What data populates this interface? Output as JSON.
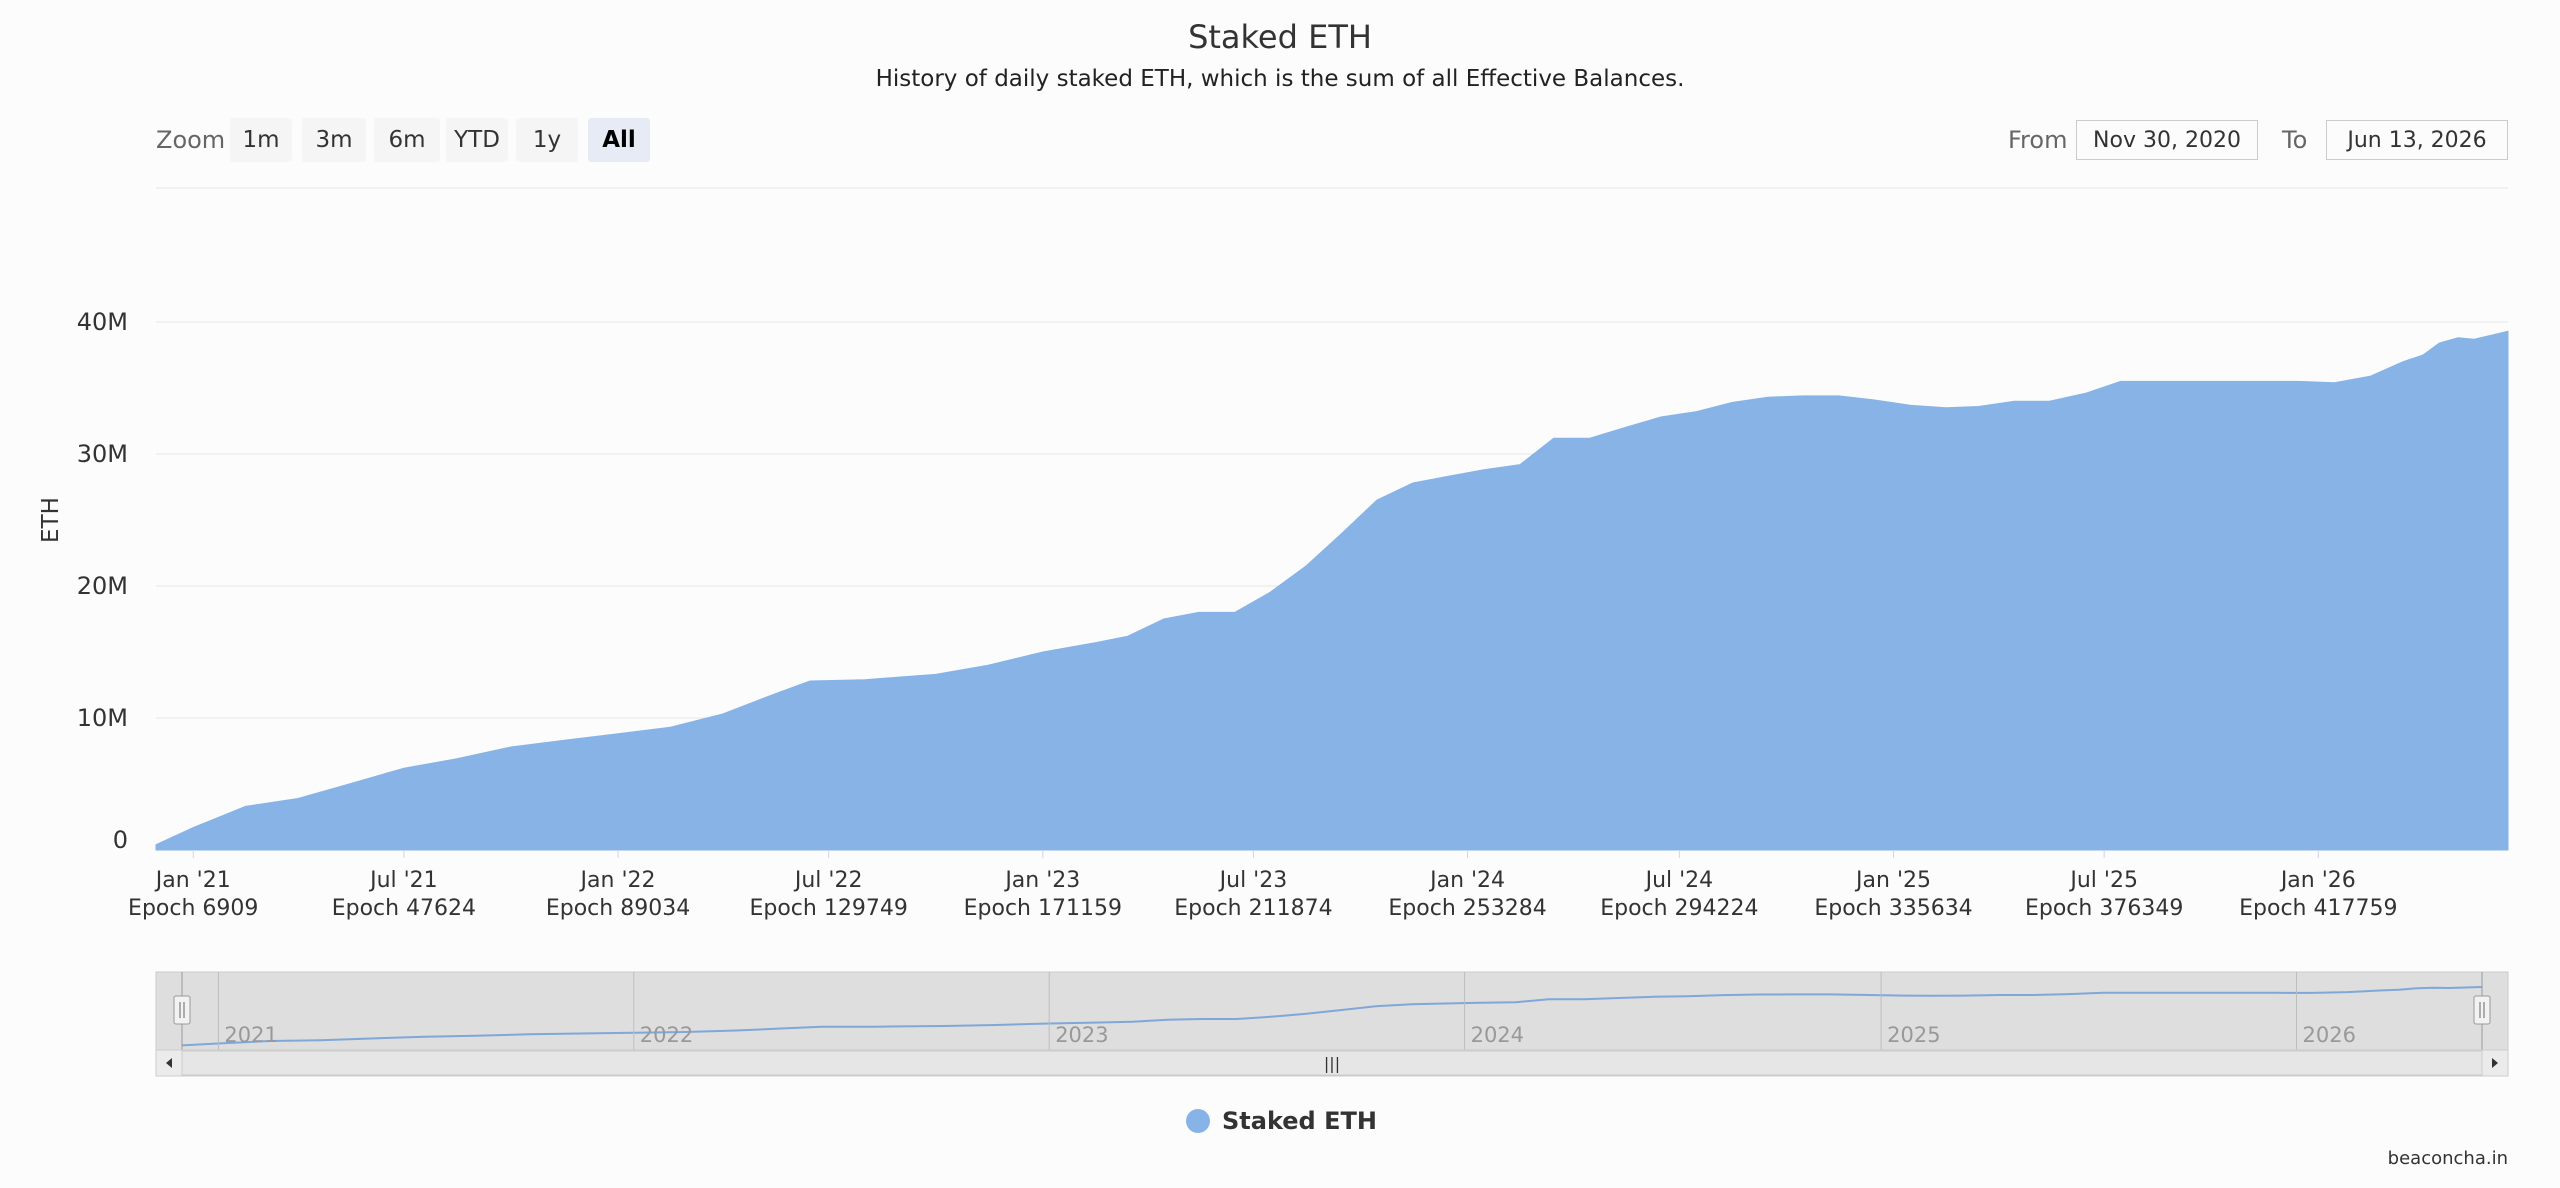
{
  "chart_data": {
    "type": "area",
    "title": "Staked ETH",
    "subtitle": "History of daily staked ETH, which is the sum of all Effective Balances.",
    "ylabel": "ETH",
    "ylim": [
      0,
      40000000
    ],
    "yticks": [
      {
        "value": 0,
        "label": "0"
      },
      {
        "value": 10000000,
        "label": "10M"
      },
      {
        "value": 20000000,
        "label": "20M"
      },
      {
        "value": 30000000,
        "label": "30M"
      },
      {
        "value": 40000000,
        "label": "40M"
      }
    ],
    "xlim": [
      "2020-11-30",
      "2026-06-13"
    ],
    "xticks": [
      {
        "date": "2021-01-01",
        "label": "Jan '21",
        "epoch": "Epoch 6909"
      },
      {
        "date": "2021-07-01",
        "label": "Jul '21",
        "epoch": "Epoch 47624"
      },
      {
        "date": "2022-01-01",
        "label": "Jan '22",
        "epoch": "Epoch 89034"
      },
      {
        "date": "2022-07-01",
        "label": "Jul '22",
        "epoch": "Epoch 129749"
      },
      {
        "date": "2023-01-01",
        "label": "Jan '23",
        "epoch": "Epoch 171159"
      },
      {
        "date": "2023-07-01",
        "label": "Jul '23",
        "epoch": "Epoch 211874"
      },
      {
        "date": "2024-01-01",
        "label": "Jan '24",
        "epoch": "Epoch 253284"
      },
      {
        "date": "2024-07-01",
        "label": "Jul '24",
        "epoch": "Epoch 294224"
      },
      {
        "date": "2025-01-01",
        "label": "Jan '25",
        "epoch": "Epoch 335634"
      },
      {
        "date": "2025-07-01",
        "label": "Jul '25",
        "epoch": "Epoch 376349"
      },
      {
        "date": "2026-01-01",
        "label": "Jan '26",
        "epoch": "Epoch 417759"
      }
    ],
    "grid": true,
    "legend_position": "bottom-center",
    "color": "#87b3e6",
    "series": [
      {
        "name": "Staked ETH",
        "x": [
          "2020-11-30",
          "2021-01-01",
          "2021-02-15",
          "2021-04-01",
          "2021-05-15",
          "2021-07-01",
          "2021-08-15",
          "2021-10-01",
          "2021-11-15",
          "2022-01-01",
          "2022-02-15",
          "2022-04-01",
          "2022-05-15",
          "2022-06-15",
          "2022-08-01",
          "2022-10-01",
          "2022-11-15",
          "2023-01-01",
          "2023-02-15",
          "2023-03-15",
          "2023-04-15",
          "2023-05-15",
          "2023-06-15",
          "2023-07-15",
          "2023-08-15",
          "2023-09-15",
          "2023-10-15",
          "2023-11-15",
          "2023-12-15",
          "2024-01-15",
          "2024-02-15",
          "2024-03-15",
          "2024-04-15",
          "2024-05-15",
          "2024-06-15",
          "2024-07-15",
          "2024-08-15",
          "2024-09-15",
          "2024-10-15",
          "2024-11-15",
          "2024-12-15",
          "2025-01-15",
          "2025-02-15",
          "2025-03-15",
          "2025-04-15",
          "2025-05-15",
          "2025-06-15",
          "2025-07-15",
          "2025-08-15",
          "2025-09-15",
          "2025-10-15",
          "2025-11-15",
          "2025-12-15",
          "2026-01-15",
          "2026-02-15",
          "2026-03-15",
          "2026-04-01",
          "2026-04-15",
          "2026-05-01",
          "2026-05-15",
          "2026-06-13"
        ],
        "values": [
          400000,
          1700000,
          3300000,
          3900000,
          5000000,
          6200000,
          6900000,
          7800000,
          8300000,
          8800000,
          9300000,
          10300000,
          11800000,
          12800000,
          12900000,
          13300000,
          14000000,
          15000000,
          15700000,
          16200000,
          17500000,
          18000000,
          18000000,
          19500000,
          21500000,
          24000000,
          26500000,
          27800000,
          28300000,
          28800000,
          29200000,
          31200000,
          31200000,
          32000000,
          32800000,
          33200000,
          33900000,
          34300000,
          34400000,
          34400000,
          34100000,
          33700000,
          33500000,
          33600000,
          34000000,
          34000000,
          34600000,
          35500000,
          35500000,
          35500000,
          35500000,
          35500000,
          35500000,
          35400000,
          35900000,
          37000000,
          37500000,
          38400000,
          38800000,
          38700000,
          39300000
        ]
      }
    ]
  },
  "toolbar": {
    "zoom_label": "Zoom",
    "buttons": [
      {
        "label": "1m"
      },
      {
        "label": "3m"
      },
      {
        "label": "6m"
      },
      {
        "label": "YTD"
      },
      {
        "label": "1y"
      },
      {
        "label": "All"
      }
    ],
    "active": "All",
    "from_label": "From",
    "from_value": "Nov 30, 2020",
    "to_label": "To",
    "to_value": "Jun 13, 2026"
  },
  "navigator": {
    "year_labels": [
      "2021",
      "2022",
      "2023",
      "2024",
      "2025",
      "2026"
    ],
    "scroll_grip": "|||"
  },
  "legend": {
    "label": "Staked ETH"
  },
  "credits": "beaconcha.in"
}
